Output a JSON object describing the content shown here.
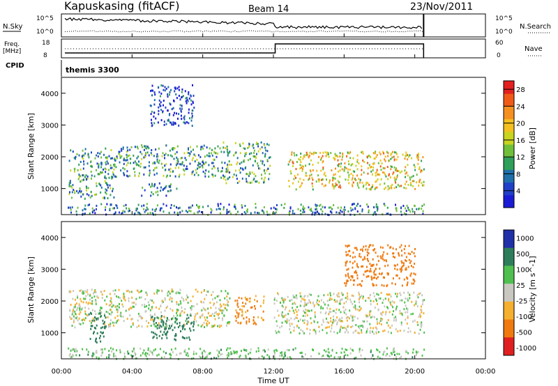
{
  "header": {
    "station": "Kapuskasing (fitACF)",
    "beam": "Beam 14",
    "date": "23/Nov/2011"
  },
  "top_panels": {
    "nsky_label": "N.Sky",
    "nsky_ticks": [
      "10^5",
      "10^0"
    ],
    "nsearch_label": "N.Search",
    "freq_label_1": "Freq.",
    "freq_label_2": "[MHz]",
    "freq_ticks": [
      "18",
      "8"
    ],
    "nave_label": "Nave",
    "nave_ticks": [
      "60",
      "0"
    ],
    "cpid_label": "CPID",
    "cpid_value": "themis 3300"
  },
  "chart_data": [
    {
      "type": "heatmap",
      "title": "",
      "xlabel": "Time UT",
      "ylabel": "Slant Range [km]",
      "x_ticks": [
        "00:00",
        "04:00",
        "08:00",
        "12:00",
        "16:00",
        "20:00",
        "00:00"
      ],
      "xlim_hours": [
        0,
        24
      ],
      "y_ticks": [
        1000,
        2000,
        3000,
        4000
      ],
      "ylim_km": [
        180,
        4500
      ],
      "data_end_hour": 20.5,
      "colorbar_label": "Power [dB]",
      "colorbar_ticks": [
        "4",
        "8",
        "12",
        "16",
        "20",
        "24",
        "28"
      ],
      "colorbar_range": [
        0,
        30
      ],
      "regions": [
        {
          "t0": 0.4,
          "t1": 3.0,
          "r0": 700,
          "r1": 2300,
          "level": 10
        },
        {
          "t0": 3.0,
          "t1": 9.0,
          "r0": 1400,
          "r1": 2400,
          "level": 10
        },
        {
          "t0": 4.5,
          "t1": 6.5,
          "r0": 800,
          "r1": 1200,
          "level": 8
        },
        {
          "t0": 9.0,
          "t1": 11.8,
          "r0": 1200,
          "r1": 2500,
          "level": 12
        },
        {
          "t0": 12.8,
          "t1": 20.5,
          "r0": 1000,
          "r1": 2200,
          "level": 18
        },
        {
          "t0": 0.3,
          "t1": 20.5,
          "r0": 200,
          "r1": 550,
          "level": 8
        },
        {
          "t0": 5.0,
          "t1": 7.5,
          "r0": 3000,
          "r1": 4300,
          "level": 4
        }
      ]
    },
    {
      "type": "heatmap",
      "title": "",
      "xlabel": "Time UT",
      "ylabel": "Slant Range [km]",
      "x_ticks": [
        "00:00",
        "04:00",
        "08:00",
        "12:00",
        "16:00",
        "20:00",
        "00:00"
      ],
      "xlim_hours": [
        0,
        24
      ],
      "y_ticks": [
        1000,
        2000,
        3000,
        4000
      ],
      "ylim_km": [
        180,
        4500
      ],
      "data_end_hour": 20.5,
      "colorbar_label": "Velocity [m s^-1]",
      "colorbar_ticks": [
        "1000",
        "500",
        "100",
        "25",
        "-25",
        "-100",
        "-500",
        "-1000"
      ],
      "regions": [
        {
          "t0": 0.4,
          "t1": 9.5,
          "r0": 1200,
          "r1": 2400,
          "level": 0
        },
        {
          "t0": 1.5,
          "t1": 2.5,
          "r0": 700,
          "r1": 1700,
          "level": 300
        },
        {
          "t0": 5.0,
          "t1": 7.5,
          "r0": 800,
          "r1": 1600,
          "level": 200
        },
        {
          "t0": 9.8,
          "t1": 11.5,
          "r0": 1300,
          "r1": 2200,
          "level": -120
        },
        {
          "t0": 12.0,
          "t1": 20.5,
          "r0": 1000,
          "r1": 2300,
          "level": 0
        },
        {
          "t0": 16.0,
          "t1": 20.0,
          "r0": 2500,
          "r1": 3800,
          "level": -200
        },
        {
          "t0": 0.3,
          "t1": 20.5,
          "r0": 200,
          "r1": 550,
          "level": 50
        }
      ]
    }
  ]
}
